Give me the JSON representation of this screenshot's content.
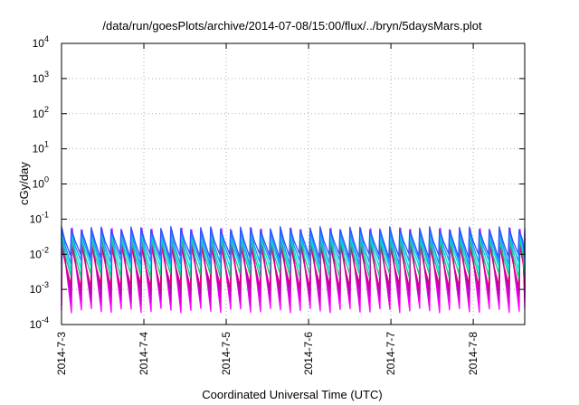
{
  "chart_data": {
    "type": "line",
    "title": "/data/run/goesPlots/archive/2014-07-08/15:00/flux/../bryn/5daysMars.plot",
    "xlabel": "Coordinated Universal Time (UTC)",
    "ylabel": "cGy/day",
    "y_scale": "log",
    "ylim": [
      0.0001,
      10000
    ],
    "xlim": [
      "2014-07-03T00:00",
      "2014-07-08T15:00"
    ],
    "grid": true,
    "x_ticks": [
      "2014-7-3",
      "2014-7-4",
      "2014-7-5",
      "2014-7-6",
      "2014-7-7",
      "2014-7-8"
    ],
    "y_ticks": [
      {
        "base": "10",
        "exp": "-4",
        "value": 0.0001
      },
      {
        "base": "10",
        "exp": "-3",
        "value": 0.001
      },
      {
        "base": "10",
        "exp": "-2",
        "value": 0.01
      },
      {
        "base": "10",
        "exp": "-1",
        "value": 0.1
      },
      {
        "base": "10",
        "exp": "0",
        "value": 1
      },
      {
        "base": "10",
        "exp": "1",
        "value": 10
      },
      {
        "base": "10",
        "exp": "2",
        "value": 100
      },
      {
        "base": "10",
        "exp": "3",
        "value": 1000
      },
      {
        "base": "10",
        "exp": "4",
        "value": 10000
      }
    ],
    "series_period_hours": 2.9,
    "series": [
      {
        "color": "#ff00ff",
        "peak": 0.05,
        "trough": 0.00025
      },
      {
        "color": "#e000e0",
        "peak": 0.04,
        "trough": 0.0004
      },
      {
        "color": "#c800c8",
        "peak": 0.03,
        "trough": 0.0006
      },
      {
        "color": "#a0129a",
        "peak": 0.022,
        "trough": 0.0009
      },
      {
        "color": "#d8007f",
        "peak": 0.018,
        "trough": 0.0012
      },
      {
        "color": "#20c080",
        "peak": 0.025,
        "trough": 0.0025
      },
      {
        "color": "#00e0e0",
        "peak": 0.035,
        "trough": 0.004
      },
      {
        "color": "#1e90ff",
        "peak": 0.045,
        "trough": 0.006
      },
      {
        "color": "#3050ff",
        "peak": 0.055,
        "trough": 0.009
      }
    ]
  }
}
